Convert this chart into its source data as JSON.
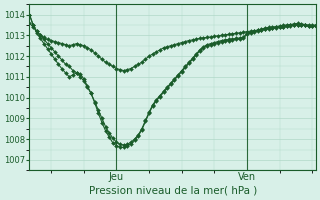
{
  "title": "Pression niveau de la mer( hPa )",
  "background_color": "#d8f0e8",
  "grid_color": "#b0d8c8",
  "line_color": "#1a5c2a",
  "ylim": [
    1006.5,
    1014.5
  ],
  "yticks": [
    1007,
    1008,
    1009,
    1010,
    1011,
    1012,
    1013,
    1014
  ],
  "xtick_labels": [
    "Jeu",
    "Ven"
  ],
  "xtick_positions": [
    24,
    60
  ],
  "series1": [
    1014.0,
    1013.5,
    1013.2,
    1013.0,
    1012.8,
    1012.6,
    1012.4,
    1012.2,
    1012.0,
    1011.8,
    1011.6,
    1011.5,
    1011.3,
    1011.2,
    1011.0,
    1010.8,
    1010.5,
    1010.2,
    1009.8,
    1009.4,
    1009.0,
    1008.6,
    1008.3,
    1008.05,
    1007.85,
    1007.75,
    1007.72,
    1007.75,
    1007.85,
    1008.0,
    1008.2,
    1008.5,
    1008.9,
    1009.3,
    1009.65,
    1009.9,
    1010.1,
    1010.3,
    1010.5,
    1010.7,
    1010.9,
    1011.1,
    1011.3,
    1011.5,
    1011.7,
    1011.9,
    1012.1,
    1012.3,
    1012.45,
    1012.55,
    1012.6,
    1012.65,
    1012.7,
    1012.75,
    1012.78,
    1012.8,
    1012.82,
    1012.85,
    1012.87,
    1012.9,
    1013.1,
    1013.15,
    1013.2,
    1013.25,
    1013.3,
    1013.35,
    1013.38,
    1013.4,
    1013.42,
    1013.45,
    1013.48,
    1013.5,
    1013.52,
    1013.55,
    1013.57,
    1013.55,
    1013.52,
    1013.5,
    1013.48,
    1013.5
  ],
  "series2": [
    1014.0,
    1013.5,
    1013.1,
    1012.85,
    1012.6,
    1012.35,
    1012.1,
    1011.85,
    1011.6,
    1011.38,
    1011.18,
    1011.0,
    1011.1,
    1011.2,
    1011.15,
    1010.9,
    1010.55,
    1010.2,
    1009.75,
    1009.25,
    1008.8,
    1008.4,
    1008.1,
    1007.82,
    1007.68,
    1007.62,
    1007.6,
    1007.65,
    1007.78,
    1007.95,
    1008.15,
    1008.45,
    1008.85,
    1009.25,
    1009.6,
    1009.85,
    1010.05,
    1010.25,
    1010.45,
    1010.65,
    1010.85,
    1011.05,
    1011.25,
    1011.45,
    1011.65,
    1011.85,
    1012.05,
    1012.25,
    1012.4,
    1012.5,
    1012.55,
    1012.6,
    1012.65,
    1012.7,
    1012.73,
    1012.75,
    1012.78,
    1012.8,
    1012.82,
    1012.85,
    1013.05,
    1013.1,
    1013.15,
    1013.2,
    1013.25,
    1013.3,
    1013.33,
    1013.35,
    1013.38,
    1013.4,
    1013.42,
    1013.45,
    1013.48,
    1013.5,
    1013.52,
    1013.5,
    1013.48,
    1013.45,
    1013.43,
    1013.45
  ],
  "series3": [
    1013.6,
    1013.4,
    1013.2,
    1013.0,
    1012.9,
    1012.8,
    1012.75,
    1012.7,
    1012.65,
    1012.6,
    1012.55,
    1012.5,
    1012.55,
    1012.6,
    1012.55,
    1012.5,
    1012.4,
    1012.3,
    1012.15,
    1012.0,
    1011.85,
    1011.7,
    1011.6,
    1011.5,
    1011.4,
    1011.35,
    1011.3,
    1011.35,
    1011.4,
    1011.5,
    1011.6,
    1011.7,
    1011.85,
    1012.0,
    1012.1,
    1012.2,
    1012.3,
    1012.4,
    1012.45,
    1012.5,
    1012.55,
    1012.6,
    1012.65,
    1012.7,
    1012.75,
    1012.78,
    1012.82,
    1012.85,
    1012.88,
    1012.9,
    1012.92,
    1012.95,
    1012.98,
    1013.0,
    1013.02,
    1013.05,
    1013.07,
    1013.1,
    1013.12,
    1013.15,
    1013.18,
    1013.2,
    1013.22,
    1013.25,
    1013.27,
    1013.3,
    1013.32,
    1013.35,
    1013.37,
    1013.4,
    1013.42,
    1013.45,
    1013.47,
    1013.5,
    1013.52,
    1013.5,
    1013.48,
    1013.45,
    1013.43,
    1013.45
  ]
}
